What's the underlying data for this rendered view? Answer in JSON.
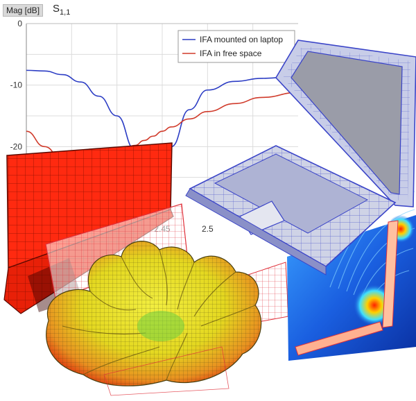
{
  "header": {
    "quantity": "Mag [dB]",
    "param": "S",
    "param_sub": "1,1"
  },
  "colors": {
    "series_laptop": "#2b3cc4",
    "series_free": "#d03a2a",
    "grid": "#dcdcdc",
    "laptop_red": "#ff2a10",
    "laptop_blue_outline": "#3a44c8",
    "field_blue": "#1e6ee8",
    "pattern_yellow": "#e8e020"
  },
  "chart_data": {
    "type": "line",
    "title": "",
    "xlabel": "",
    "ylabel": "Mag [dB]",
    "xlim": [
      2.3,
      2.6
    ],
    "ylim": [
      -30,
      0
    ],
    "yticks": [
      0,
      -10,
      -20
    ],
    "xtick_labels": [
      "2.45",
      "2.5"
    ],
    "x": [
      2.3,
      2.32,
      2.34,
      2.36,
      2.38,
      2.4,
      2.42,
      2.43,
      2.44,
      2.45,
      2.46,
      2.48,
      2.5,
      2.53,
      2.56,
      2.6
    ],
    "series": [
      {
        "name": "IFA mounted on laptop",
        "color": "#2b3cc4",
        "values": [
          -7.6,
          -7.7,
          -8.3,
          -9.5,
          -11.8,
          -15.0,
          -20.5,
          -24.5,
          -25.8,
          -24.0,
          -20.0,
          -14.0,
          -10.8,
          -9.4,
          -8.9,
          -8.6
        ]
      },
      {
        "name": "IFA in free space",
        "color": "#d03a2a",
        "values": [
          -17.5,
          -20.0,
          -22.2,
          -23.4,
          -22.8,
          -21.4,
          -19.8,
          -19.0,
          -18.3,
          -17.5,
          -16.8,
          -15.5,
          -14.3,
          -13.0,
          -12.0,
          -11.2
        ]
      }
    ],
    "legend": "top-right",
    "grid": true
  }
}
